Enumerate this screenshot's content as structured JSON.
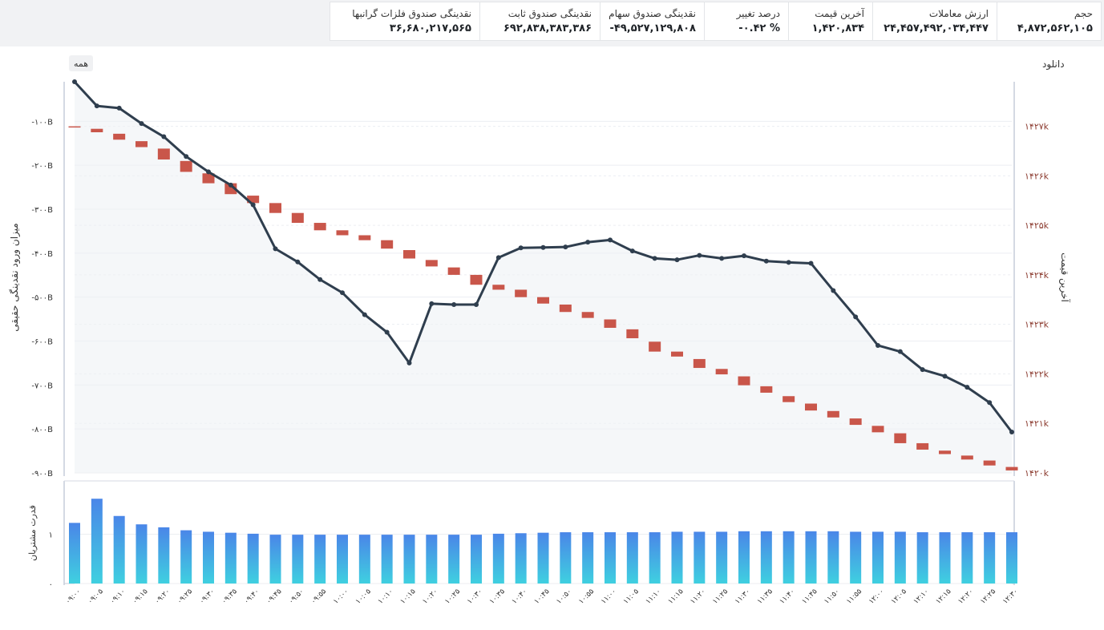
{
  "stats": [
    {
      "label": "حجم",
      "value": "۴,۸۷۲,۵۶۲,۱۰۵"
    },
    {
      "label": "ارزش معاملات",
      "value": "۲۴,۴۵۷,۴۹۲,۰۳۴,۴۴۷"
    },
    {
      "label": "آخرین قیمت",
      "value": "۱,۴۲۰,۸۳۴"
    },
    {
      "label": "درصد تغییر",
      "value": "-۰.۴۲ %"
    },
    {
      "label": "نقدینگی صندوق سهام",
      "value": "-۴۹,۵۲۷,۱۲۹,۸۰۸"
    },
    {
      "label": "نقدینگی صندوق ثابت",
      "value": "۶۹۲,۸۳۸,۳۸۳,۳۸۶"
    },
    {
      "label": "نقدینگی صندوق فلزات گرانبها",
      "value": "۳۶,۶۸۰,۲۱۷,۵۶۵"
    }
  ],
  "toolbar": {
    "download_label": "دانلود",
    "range_label": "همه"
  },
  "colors": {
    "line": "#2f3e4e",
    "candle": "#c9564a",
    "bar_top": "#4a86e8",
    "bar_bottom": "#3fd0e0",
    "right_axis_text": "#8b3a2e"
  },
  "chart_data": {
    "type": "line+candlestick+bar",
    "x": [
      "۰۹:۰۰",
      "۰۹:۰۵",
      "۰۹:۱۰",
      "۰۹:۱۵",
      "۰۹:۲۰",
      "۰۹:۲۵",
      "۰۹:۳۰",
      "۰۹:۳۵",
      "۰۹:۴۰",
      "۰۹:۴۵",
      "۰۹:۵۰",
      "۰۹:۵۵",
      "۱۰:۰۰",
      "۱۰:۰۵",
      "۱۰:۱۰",
      "۱۰:۱۵",
      "۱۰:۲۰",
      "۱۰:۲۵",
      "۱۰:۳۰",
      "۱۰:۳۵",
      "۱۰:۴۰",
      "۱۰:۴۵",
      "۱۰:۵۰",
      "۱۰:۵۵",
      "۱۱:۰۰",
      "۱۱:۰۵",
      "۱۱:۱۰",
      "۱۱:۱۵",
      "۱۱:۲۰",
      "۱۱:۲۵",
      "۱۱:۳۰",
      "۱۱:۳۵",
      "۱۱:۴۰",
      "۱۱:۴۵",
      "۱۱:۵۰",
      "۱۱:۵۵",
      "۱۲:۰۰",
      "۱۲:۰۵",
      "۱۲:۱۰",
      "۱۲:۱۵",
      "۱۲:۲۰",
      "۱۲:۲۵",
      "۱۲:۳۰"
    ],
    "left_axis": {
      "label": "میزان ورود نقدینگی حقیقی",
      "ticks": [
        -100,
        -200,
        -300,
        -400,
        -500,
        -600,
        -700,
        -800,
        -900
      ],
      "tick_labels": [
        "-۱۰۰B",
        "-۲۰۰B",
        "-۳۰۰B",
        "-۴۰۰B",
        "-۵۰۰B",
        "-۶۰۰B",
        "-۷۰۰B",
        "-۸۰۰B",
        "-۹۰۰B"
      ],
      "range": [
        -900,
        -10
      ]
    },
    "right_axis": {
      "label": "آخرین قیمت",
      "ticks": [
        1427,
        1426,
        1425,
        1424,
        1423,
        1422,
        1421,
        1420
      ],
      "tick_labels": [
        "۱۴۲۷k",
        "۱۴۲۶k",
        "۱۴۲۵k",
        "۱۴۲۴k",
        "۱۴۲۳k",
        "۱۴۲۲k",
        "۱۴۲۱k",
        "۱۴۲۰k"
      ],
      "range": [
        1420,
        1427.9
      ]
    },
    "bottom_axis": {
      "label": "قدرت مشتریان",
      "ticks": [
        0,
        1
      ],
      "tick_labels": [
        "۰",
        "۱"
      ],
      "range": [
        0,
        2.0
      ]
    },
    "series": [
      {
        "name": "میزان ورود نقدینگی حقیقی",
        "type": "line",
        "axis": "left",
        "values": [
          -10,
          -65,
          -70,
          -105,
          -135,
          -180,
          -215,
          -245,
          -290,
          -390,
          -420,
          -460,
          -490,
          -540,
          -580,
          -650,
          -515,
          -517,
          -517,
          -410,
          -388,
          -387,
          -386,
          -375,
          -370,
          -395,
          -412,
          -415,
          -405,
          -412,
          -406,
          -418,
          -421,
          -423,
          -485,
          -545,
          -610,
          -624,
          -665,
          -680,
          -705,
          -740,
          -807
        ]
      },
      {
        "name": "آخرین قیمت",
        "type": "candlestick",
        "axis": "right",
        "open": [
          1427.0,
          1426.95,
          1426.85,
          1426.7,
          1426.55,
          1426.3,
          1426.05,
          1425.85,
          1425.6,
          1425.45,
          1425.25,
          1425.05,
          1424.9,
          1424.8,
          1424.7,
          1424.5,
          1424.3,
          1424.15,
          1424.0,
          1423.8,
          1423.7,
          1423.55,
          1423.4,
          1423.25,
          1423.1,
          1422.9,
          1422.65,
          1422.45,
          1422.3,
          1422.1,
          1421.95,
          1421.75,
          1421.55,
          1421.4,
          1421.25,
          1421.1,
          1420.95,
          1420.8,
          1420.6,
          1420.45,
          1420.35,
          1420.25,
          1420.12
        ],
        "close": [
          1426.98,
          1426.88,
          1426.73,
          1426.58,
          1426.33,
          1426.08,
          1425.85,
          1425.63,
          1425.45,
          1425.25,
          1425.05,
          1424.9,
          1424.8,
          1424.7,
          1424.53,
          1424.33,
          1424.17,
          1424.0,
          1423.8,
          1423.7,
          1423.55,
          1423.42,
          1423.25,
          1423.13,
          1422.93,
          1422.72,
          1422.45,
          1422.35,
          1422.12,
          1421.99,
          1421.77,
          1421.62,
          1421.43,
          1421.26,
          1421.12,
          1420.97,
          1420.82,
          1420.6,
          1420.47,
          1420.38,
          1420.27,
          1420.15,
          1420.05
        ]
      },
      {
        "name": "قدرت مشتریان",
        "type": "bar",
        "axis": "bottom",
        "values": [
          1.23,
          1.72,
          1.37,
          1.2,
          1.14,
          1.08,
          1.05,
          1.03,
          1.01,
          0.99,
          0.99,
          0.99,
          0.99,
          0.99,
          0.99,
          0.99,
          0.99,
          0.99,
          0.99,
          1.01,
          1.02,
          1.03,
          1.04,
          1.04,
          1.04,
          1.04,
          1.04,
          1.05,
          1.05,
          1.05,
          1.06,
          1.06,
          1.06,
          1.06,
          1.06,
          1.05,
          1.05,
          1.05,
          1.04,
          1.04,
          1.04,
          1.04,
          1.04
        ]
      }
    ]
  }
}
